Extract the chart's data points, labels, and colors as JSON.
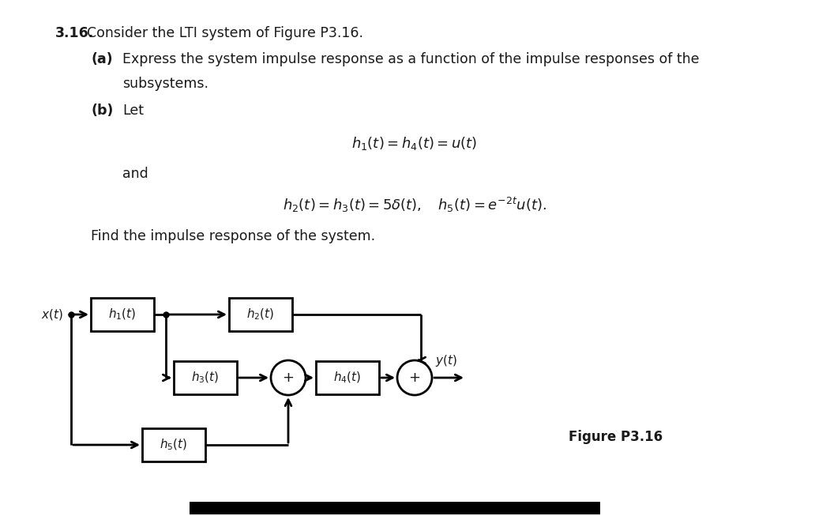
{
  "title_number": "3.16.",
  "title_text": "Consider the LTI system of Figure P3.16.",
  "part_a_label": "(a)",
  "part_a_text1": "Express the system impulse response as a function of the impulse responses of the",
  "part_a_text2": "subsystems.",
  "part_b_label": "(b)",
  "part_b_text": "Let",
  "eq1": "$h_1(t) = h_4(t) = u(t)$",
  "and_text": "and",
  "eq2_left": "$h_2(t) = h_3(t) = 5\\delta(t),\\quad h_5(t) = e^{-2t}u(t).$",
  "find_text": "Find the impulse response of the system.",
  "figure_label": "Figure P3.16",
  "bg_color": "#ffffff",
  "text_color": "#1a1a1a",
  "box_labels": [
    "$h_1(t)$",
    "$h_2(t)$",
    "$h_3(t)$",
    "$h_4(t)$",
    "$h_5(t)$"
  ],
  "x_label": "$x(t)$",
  "y_label": "$y(t)$"
}
